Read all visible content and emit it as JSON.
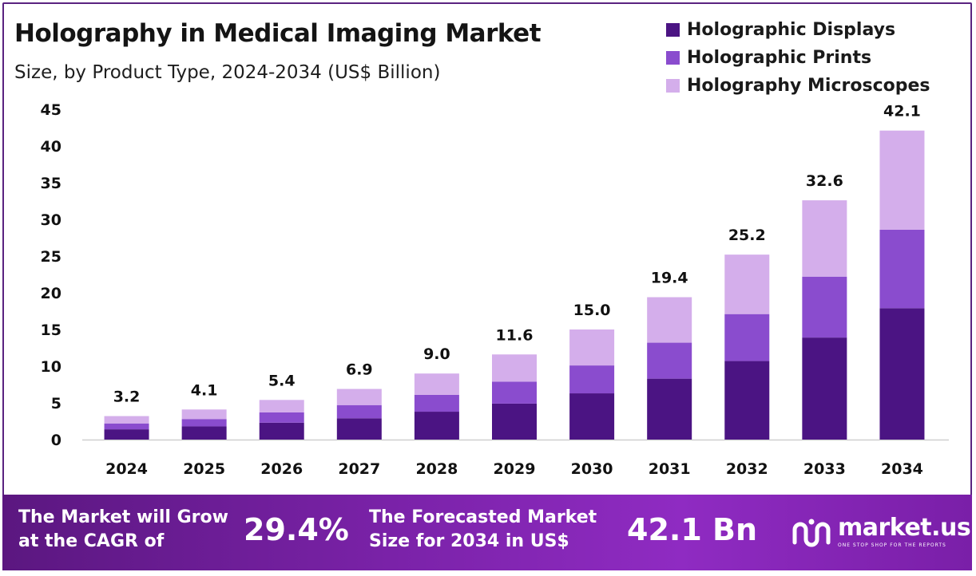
{
  "header": {
    "title": "Holography in Medical Imaging Market",
    "subtitle": "Size, by Product Type, 2024-2034 (US$ Billion)"
  },
  "legend": [
    {
      "label": "Holographic Displays",
      "color": "#4b1483"
    },
    {
      "label": "Holographic Prints",
      "color": "#8a4cce"
    },
    {
      "label": "Holography Microscopes",
      "color": "#d4aeeb"
    }
  ],
  "chart_data": {
    "type": "bar",
    "stacked": true,
    "title": "Holography in Medical Imaging Market",
    "subtitle": "Size, by Product Type, 2024-2034 (US$ Billion)",
    "categories": [
      "2024",
      "2025",
      "2026",
      "2027",
      "2028",
      "2029",
      "2030",
      "2031",
      "2032",
      "2033",
      "2034"
    ],
    "series": [
      {
        "name": "Holographic Displays",
        "color": "#4b1483",
        "values": [
          1.4,
          1.8,
          2.3,
          2.9,
          3.8,
          4.9,
          6.3,
          8.3,
          10.7,
          13.9,
          17.9
        ]
      },
      {
        "name": "Holographic Prints",
        "color": "#8a4cce",
        "values": [
          0.8,
          1.0,
          1.4,
          1.8,
          2.3,
          3.0,
          3.8,
          4.9,
          6.4,
          8.3,
          10.7
        ]
      },
      {
        "name": "Holography Microscopes",
        "color": "#d4aeeb",
        "values": [
          1.0,
          1.3,
          1.7,
          2.2,
          2.9,
          3.7,
          4.9,
          6.2,
          8.1,
          10.4,
          13.5
        ]
      }
    ],
    "totals": [
      "3.2",
      "4.1",
      "5.4",
      "6.9",
      "9.0",
      "11.6",
      "15.0",
      "19.4",
      "25.2",
      "32.6",
      "42.1"
    ],
    "yticks": [
      0,
      5,
      10,
      15,
      20,
      25,
      30,
      35,
      40,
      45
    ],
    "ylim": [
      0,
      45
    ],
    "xlabel": "",
    "ylabel": "",
    "grid": false,
    "legend_position": "top-right"
  },
  "footer": {
    "cagr_text_1": "The Market will Grow",
    "cagr_text_2": "at the CAGR of",
    "cagr_value": "29.4%",
    "forecast_text_1": "The Forecasted Market",
    "forecast_text_2": "Size for 2034 in US$",
    "forecast_value": "42.1 Bn",
    "brand_name": "market.us",
    "brand_tagline": "ONE STOP SHOP FOR THE REPORTS"
  }
}
